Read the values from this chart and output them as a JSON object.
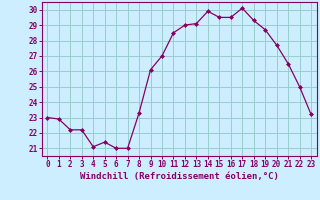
{
  "x": [
    0,
    1,
    2,
    3,
    4,
    5,
    6,
    7,
    8,
    9,
    10,
    11,
    12,
    13,
    14,
    15,
    16,
    17,
    18,
    19,
    20,
    21,
    22,
    23
  ],
  "y": [
    23.0,
    22.9,
    22.2,
    22.2,
    21.1,
    21.4,
    21.0,
    21.0,
    23.3,
    26.1,
    27.0,
    28.5,
    29.0,
    29.1,
    29.9,
    29.5,
    29.5,
    30.1,
    29.3,
    28.7,
    27.7,
    26.5,
    25.0,
    23.2
  ],
  "line_color": "#880066",
  "marker": "D",
  "marker_size": 2.0,
  "bg_color": "#cceeff",
  "grid_color": "#99cccc",
  "xlabel": "Windchill (Refroidissement éolien,°C)",
  "xlabel_color": "#880066",
  "tick_color": "#880066",
  "spine_color": "#880066",
  "xlim": [
    -0.5,
    23.5
  ],
  "ylim": [
    20.5,
    30.5
  ],
  "yticks": [
    21,
    22,
    23,
    24,
    25,
    26,
    27,
    28,
    29,
    30
  ],
  "xticks": [
    0,
    1,
    2,
    3,
    4,
    5,
    6,
    7,
    8,
    9,
    10,
    11,
    12,
    13,
    14,
    15,
    16,
    17,
    18,
    19,
    20,
    21,
    22,
    23
  ],
  "tick_fontsize": 5.5,
  "xlabel_fontsize": 6.5
}
